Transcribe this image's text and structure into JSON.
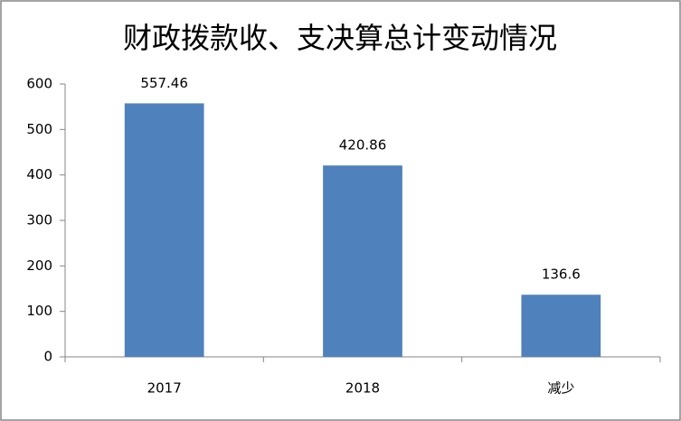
{
  "chart_data": {
    "type": "bar",
    "title": "财政拨款收、支决算总计变动情况",
    "categories": [
      "2017",
      "2018",
      "减少"
    ],
    "values": [
      557.46,
      420.86,
      136.6
    ],
    "color": "#4f81bd",
    "ylim": [
      0,
      600
    ],
    "yticks": [
      0,
      100,
      200,
      300,
      400,
      500,
      600
    ],
    "grid": false
  }
}
